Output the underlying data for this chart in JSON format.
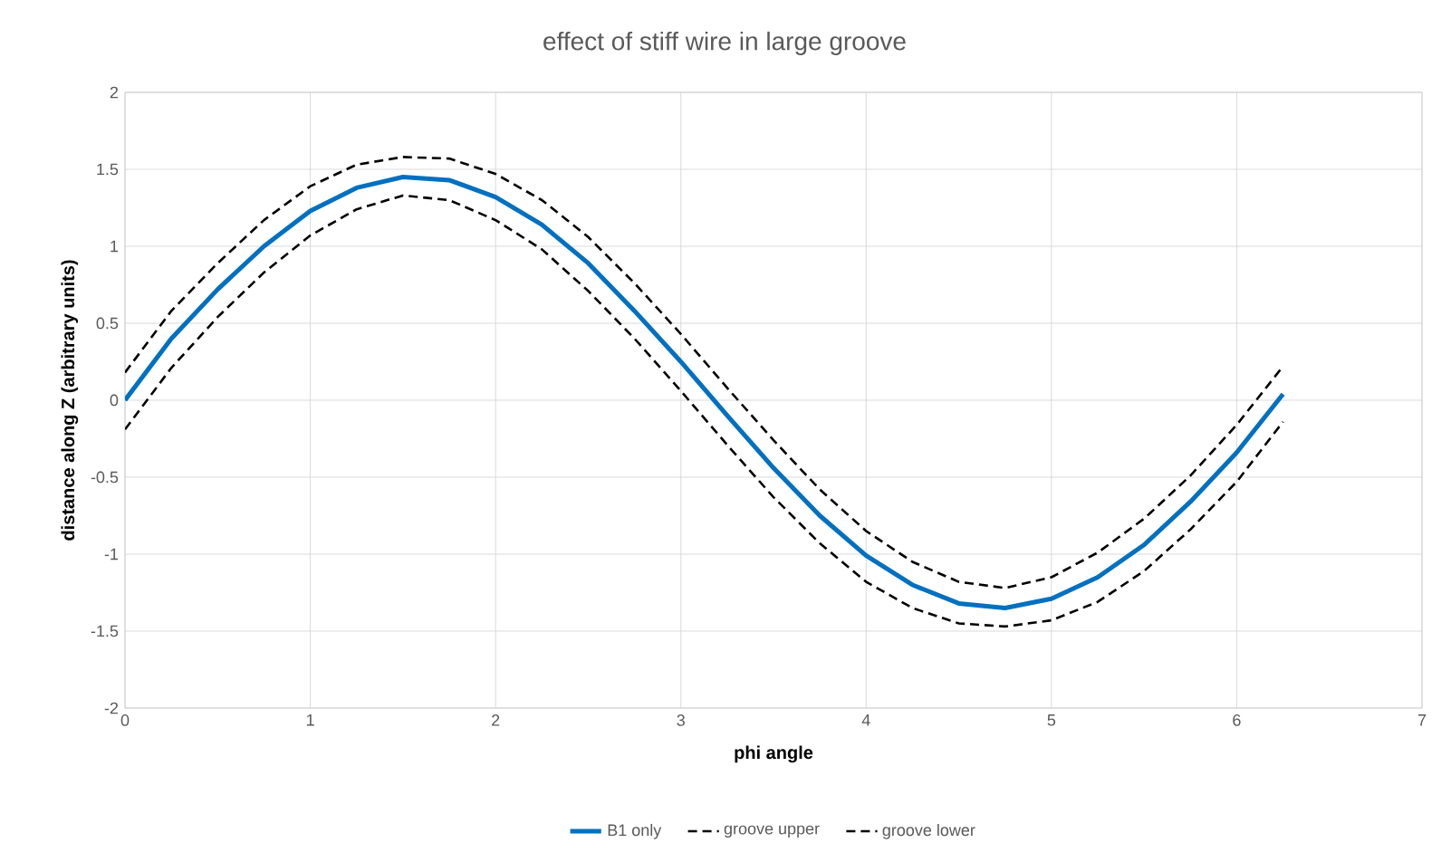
{
  "chart_data": {
    "type": "line",
    "title": "effect of stiff wire in large groove",
    "xlabel": "phi angle",
    "ylabel": "distance along Z (arbitrary units)",
    "x": [
      0,
      0.25,
      0.5,
      0.75,
      1,
      1.25,
      1.5,
      1.75,
      2,
      2.25,
      2.5,
      2.75,
      3,
      3.25,
      3.5,
      3.75,
      4,
      4.25,
      4.5,
      4.75,
      5,
      5.25,
      5.5,
      5.75,
      6,
      6.25
    ],
    "series": [
      {
        "name": "B1 only",
        "color": "#0070c0",
        "line_style": "solid",
        "values": [
          0,
          0.4,
          0.72,
          1.0,
          1.23,
          1.38,
          1.45,
          1.43,
          1.32,
          1.14,
          0.89,
          0.58,
          0.25,
          -0.1,
          -0.44,
          -0.75,
          -1.01,
          -1.2,
          -1.32,
          -1.35,
          -1.29,
          -1.15,
          -0.94,
          -0.66,
          -0.34,
          0.04
        ]
      },
      {
        "name": "groove upper",
        "color": "#000000",
        "line_style": "dashed",
        "values": [
          0.18,
          0.58,
          0.89,
          1.17,
          1.39,
          1.53,
          1.58,
          1.57,
          1.47,
          1.3,
          1.06,
          0.76,
          0.43,
          0.08,
          -0.26,
          -0.58,
          -0.85,
          -1.05,
          -1.18,
          -1.22,
          -1.15,
          -0.99,
          -0.77,
          -0.49,
          -0.16,
          0.22
        ]
      },
      {
        "name": "groove lower",
        "color": "#000000",
        "line_style": "dashed",
        "values": [
          -0.19,
          0.21,
          0.54,
          0.83,
          1.07,
          1.24,
          1.33,
          1.3,
          1.17,
          0.98,
          0.71,
          0.4,
          0.06,
          -0.29,
          -0.63,
          -0.93,
          -1.18,
          -1.35,
          -1.45,
          -1.47,
          -1.43,
          -1.31,
          -1.11,
          -0.84,
          -0.53,
          -0.14
        ]
      }
    ],
    "xlim": [
      0,
      7
    ],
    "xticks": [
      0,
      1,
      2,
      3,
      4,
      5,
      6,
      7
    ],
    "ylim": [
      -2,
      2
    ],
    "yticks": [
      -2,
      -1.5,
      -1,
      -0.5,
      0,
      0.5,
      1,
      1.5,
      2
    ],
    "grid": true,
    "legend": "bottom"
  }
}
